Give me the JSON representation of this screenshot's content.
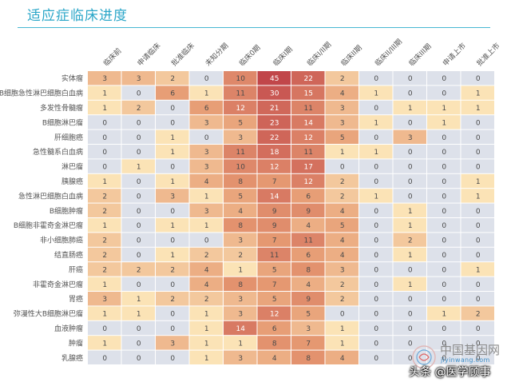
{
  "chart_data": {
    "type": "heatmap",
    "title": "适应症临床进度",
    "columns": [
      "临床前",
      "申请临床",
      "批准临床",
      "未知分期",
      "临床0期",
      "临床I期",
      "临床I/II期",
      "临床II期",
      "临床II/III期",
      "临床III期",
      "申请上市",
      "批准上市"
    ],
    "rows": [
      "实体瘤",
      "B细胞急性淋巴细胞白血病",
      "多发性骨髓瘤",
      "B细胞淋巴瘤",
      "肝细胞癌",
      "急性髓系白血病",
      "淋巴瘤",
      "胰腺癌",
      "急性淋巴细胞白血病",
      "B细胞肿瘤",
      "B细胞非霍奇金淋巴瘤",
      "非小细胞肺癌",
      "结直肠癌",
      "肝癌",
      "非霍奇金淋巴瘤",
      "胃癌",
      "弥漫性大B细胞淋巴瘤",
      "血液肿瘤",
      "肿瘤",
      "乳腺癌"
    ],
    "values": [
      [
        3,
        3,
        2,
        0,
        10,
        45,
        22,
        2,
        0,
        0,
        0,
        0
      ],
      [
        1,
        0,
        6,
        1,
        11,
        30,
        15,
        4,
        1,
        0,
        0,
        1
      ],
      [
        1,
        2,
        0,
        6,
        12,
        21,
        11,
        3,
        0,
        1,
        1,
        1
      ],
      [
        0,
        0,
        0,
        3,
        5,
        23,
        14,
        3,
        1,
        0,
        1,
        0
      ],
      [
        0,
        0,
        1,
        0,
        3,
        22,
        12,
        5,
        0,
        3,
        0,
        0
      ],
      [
        0,
        0,
        1,
        3,
        11,
        18,
        11,
        1,
        1,
        0,
        0,
        0
      ],
      [
        0,
        1,
        0,
        3,
        10,
        12,
        17,
        0,
        0,
        0,
        0,
        0
      ],
      [
        1,
        0,
        1,
        4,
        8,
        7,
        12,
        2,
        0,
        0,
        0,
        1
      ],
      [
        2,
        0,
        3,
        1,
        5,
        14,
        6,
        2,
        1,
        0,
        0,
        1
      ],
      [
        2,
        0,
        0,
        3,
        4,
        9,
        9,
        4,
        0,
        1,
        0,
        0
      ],
      [
        1,
        0,
        1,
        1,
        8,
        9,
        4,
        5,
        0,
        1,
        0,
        0
      ],
      [
        2,
        0,
        0,
        0,
        3,
        7,
        11,
        4,
        0,
        2,
        0,
        0
      ],
      [
        2,
        0,
        1,
        2,
        2,
        11,
        6,
        4,
        0,
        1,
        0,
        0
      ],
      [
        2,
        2,
        2,
        4,
        1,
        5,
        8,
        3,
        0,
        0,
        0,
        1
      ],
      [
        1,
        0,
        0,
        4,
        8,
        7,
        4,
        2,
        0,
        1,
        0,
        0
      ],
      [
        3,
        1,
        2,
        2,
        3,
        5,
        9,
        2,
        0,
        0,
        0,
        0
      ],
      [
        1,
        1,
        0,
        1,
        3,
        12,
        5,
        0,
        0,
        0,
        1,
        2
      ],
      [
        0,
        0,
        0,
        1,
        14,
        6,
        3,
        1,
        0,
        0,
        0,
        0
      ],
      [
        1,
        0,
        3,
        1,
        1,
        8,
        7,
        1,
        0,
        0,
        0,
        0
      ],
      [
        0,
        0,
        0,
        1,
        3,
        4,
        8,
        4,
        0,
        0,
        0,
        0
      ]
    ],
    "zero_color": "#dde1ea",
    "color_low": "#fbe3b6",
    "color_mid": "#e69a72",
    "color_high": "#c1464a",
    "text_color": "#4a4a4a"
  },
  "watermark": {
    "cn": "中国基因网",
    "url": "jiyinwang.com",
    "toutiao": "头条 @医学顾事"
  }
}
